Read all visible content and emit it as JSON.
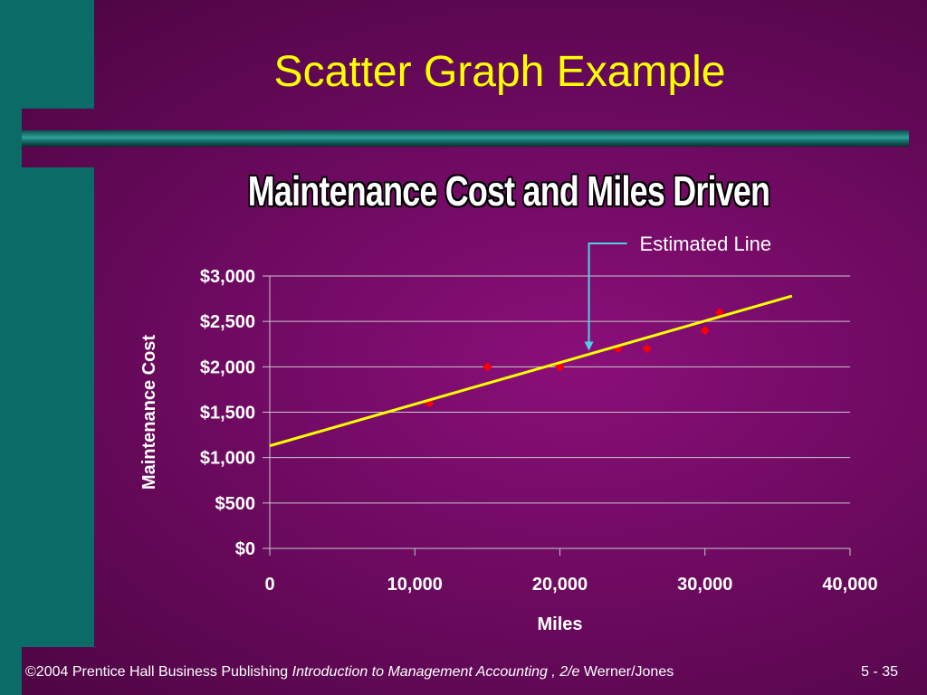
{
  "slide": {
    "title": "Scatter Graph Example",
    "footer": {
      "copyright": "©2004 Prentice Hall Business Publishing",
      "book": "Introduction to Management Accounting , 2/e",
      "authors": "Werner/Jones",
      "page": "5 - 35"
    }
  },
  "chart_data": {
    "type": "scatter",
    "title": "Maintenance Cost and Miles Driven",
    "xlabel": "Miles",
    "ylabel": "Maintenance Cost",
    "xlim": [
      0,
      40000
    ],
    "ylim": [
      0,
      3000
    ],
    "x_ticks": [
      "0",
      "10,000",
      "20,000",
      "30,000",
      "40,000"
    ],
    "y_ticks": [
      "$0",
      "$500",
      "$1,000",
      "$1,500",
      "$2,000",
      "$2,500",
      "$3,000"
    ],
    "grid": true,
    "points": [
      {
        "x": 11000,
        "y": 1600
      },
      {
        "x": 15000,
        "y": 2000
      },
      {
        "x": 20000,
        "y": 2000
      },
      {
        "x": 24000,
        "y": 2200
      },
      {
        "x": 26000,
        "y": 2200
      },
      {
        "x": 30000,
        "y": 2400
      },
      {
        "x": 31000,
        "y": 2600
      }
    ],
    "estimated_line": {
      "x": [
        0,
        36000
      ],
      "y": [
        1130,
        2780
      ]
    },
    "annotation": {
      "text": "Estimated Line",
      "x": 22000
    },
    "colors": {
      "points": "#ff0000",
      "line": "#ffff00",
      "arrow": "#4fd0e8",
      "text": "#ffffff",
      "grid": "#c8c8c8"
    }
  }
}
